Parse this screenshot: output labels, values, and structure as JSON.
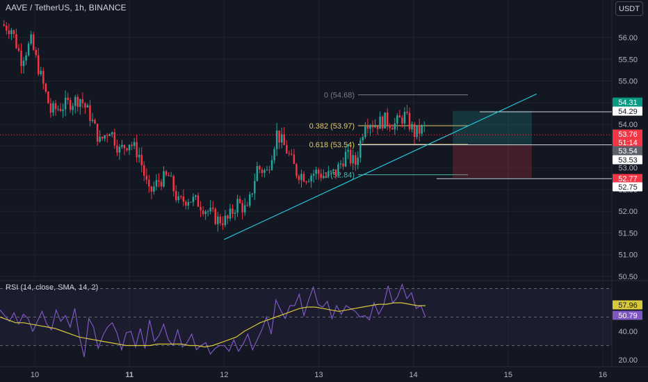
{
  "header": {
    "symbol_line": "AAVE / TetherUS, 1h, BINANCE",
    "currency_button": "USDT"
  },
  "rsi_title": "RSI (14, close, SMA, 14, 2)",
  "colors": {
    "background": "#131722",
    "up": "#26a69a",
    "down": "#f23645",
    "trendline": "#26c6da",
    "fib_gray": "#787b86",
    "fib_yellow": "#e5c76b",
    "fib_teal": "#4db6ac",
    "rsi": "#7e57c2",
    "rsi_ma": "#d8c83a",
    "grid": "#1e222d"
  },
  "chart_data": [
    {
      "type": "candlestick",
      "title": "",
      "ylim": [
        50.5,
        56.5
      ],
      "y_ticks": [
        "56.00",
        "55.50",
        "55.00",
        "54.50",
        "54.00",
        "53.50",
        "53.00",
        "52.50",
        "52.00",
        "51.50",
        "51.00",
        "50.50"
      ],
      "x_ticks": [
        "10",
        "11",
        "12",
        "13",
        "14",
        "15",
        "16"
      ],
      "close_path": [
        56.3,
        56.2,
        55.5,
        55.9,
        55.1,
        54.3,
        54.4,
        54.5,
        54.6,
        54.2,
        53.6,
        53.9,
        53.4,
        53.6,
        53.3,
        52.4,
        52.7,
        52.8,
        52.2,
        52.3,
        52.2,
        52.0,
        51.8,
        51.8,
        52.2,
        52.0,
        53.0,
        52.9,
        53.8,
        53.4,
        52.9,
        52.8,
        52.9,
        52.8,
        52.9,
        53.3,
        53.1,
        54.1,
        54.0,
        54.1,
        54.0,
        54.2,
        53.8,
        53.9
      ],
      "price_labels": [
        {
          "text": "54.31",
          "role": "target"
        },
        {
          "text": "54.29",
          "role": "level"
        },
        {
          "text": "53.76",
          "role": "last-price"
        },
        {
          "text": "51:14",
          "role": "countdown"
        },
        {
          "text": "53.54",
          "role": "entry"
        },
        {
          "text": "53.53",
          "role": "level"
        },
        {
          "text": "52.77",
          "role": "stop"
        },
        {
          "text": "52.75",
          "role": "level"
        }
      ],
      "fib_levels": [
        {
          "ratio": "0",
          "price": 54.68,
          "label": "0 (54.68)"
        },
        {
          "ratio": "0.382",
          "price": 53.97,
          "label": "0.382 (53.97)"
        },
        {
          "ratio": "0.618",
          "price": 53.54,
          "label": "0.618 (53.54)"
        },
        {
          "ratio": "1",
          "price": 52.84,
          "label": "1 (52.84)"
        }
      ],
      "trendline": {
        "from": {
          "x": "12",
          "y": 51.35
        },
        "to": {
          "x": "15.3",
          "y": 54.7
        }
      },
      "position_tool": {
        "entry": 53.54,
        "target": 54.31,
        "stop": 52.77
      },
      "horizontal_lines": [
        54.29,
        53.53,
        52.75
      ],
      "last_price": 53.76
    },
    {
      "type": "line",
      "title": "RSI (14, close, SMA, 14, 2)",
      "ylim": [
        15,
        90
      ],
      "y_ticks": [
        "40.00",
        "20.00"
      ],
      "bands": [
        70,
        30
      ],
      "midline": 50,
      "series": [
        {
          "values": [
            55,
            51,
            47,
            53,
            45,
            52,
            49,
            40,
            47,
            54,
            45,
            41,
            55,
            47,
            51,
            43,
            56,
            36,
            22,
            49,
            43,
            28,
            37,
            43,
            46,
            39,
            27,
            39,
            40,
            29,
            42,
            28,
            48,
            33,
            37,
            45,
            34,
            30,
            41,
            29,
            32,
            38,
            27,
            30,
            32,
            24,
            28,
            30,
            30,
            26,
            34,
            26,
            31,
            38,
            27,
            34,
            41,
            50,
            38,
            62,
            55,
            49,
            58,
            58,
            66,
            51,
            62,
            71,
            59,
            57,
            61,
            49,
            58,
            52,
            58,
            56,
            54,
            50,
            51,
            48,
            60,
            52,
            58,
            72,
            60,
            64,
            73,
            63,
            67,
            56,
            58,
            50
          ]
        },
        {
          "values": [
            50,
            48,
            46,
            46,
            45,
            44,
            43,
            42,
            40,
            38,
            36,
            35,
            34,
            33,
            32,
            31,
            30,
            30,
            30,
            30,
            31,
            31,
            31,
            31,
            30,
            30,
            29,
            30,
            32,
            34,
            36,
            40,
            43,
            46,
            48,
            50,
            52,
            54,
            56,
            57,
            57,
            56,
            55,
            54,
            55,
            56,
            57,
            58,
            59,
            59,
            60,
            60,
            59,
            58,
            58
          ]
        }
      ],
      "value_labels": [
        "57.96",
        "50.79"
      ]
    }
  ]
}
